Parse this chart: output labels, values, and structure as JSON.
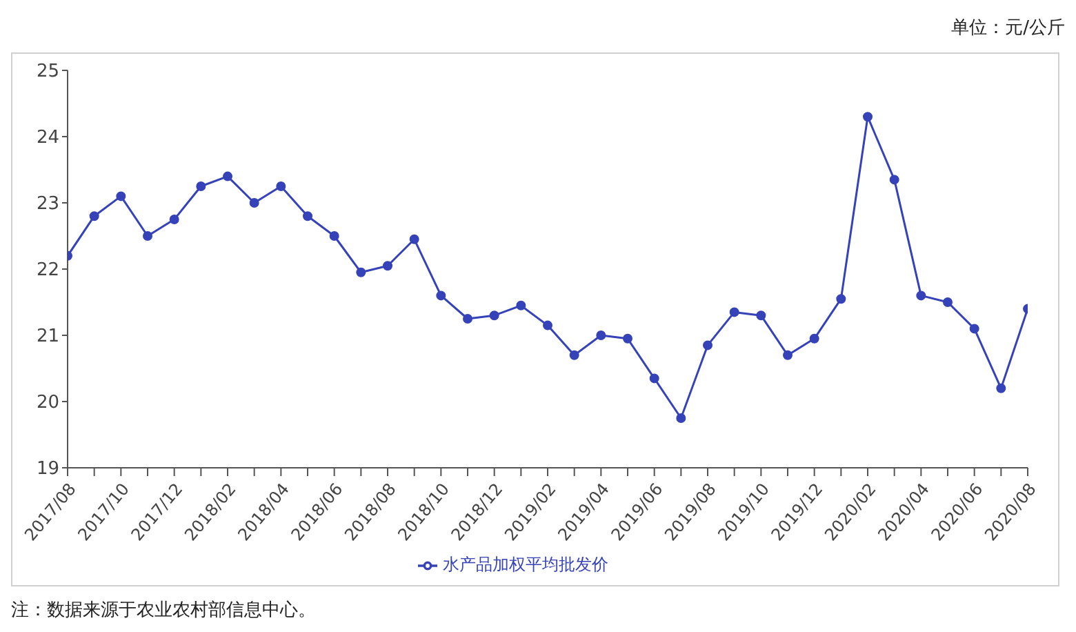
{
  "chart_data": {
    "type": "line",
    "categories": [
      "2017/08",
      null,
      "2017/10",
      null,
      "2017/12",
      null,
      "2018/02",
      null,
      "2018/04",
      null,
      "2018/06",
      null,
      "2018/08",
      null,
      "2018/10",
      null,
      "2018/12",
      null,
      "2019/02",
      null,
      "2019/04",
      null,
      "2019/06",
      null,
      "2019/08",
      null,
      "2019/10",
      null,
      "2019/12",
      null,
      "2020/02",
      null,
      "2020/04",
      null,
      "2020/06",
      null,
      "2020/08"
    ],
    "series": [
      {
        "name": "水产品加权平均批发价",
        "color": "#3542b8",
        "values": [
          22.2,
          22.8,
          23.1,
          22.5,
          22.75,
          23.25,
          23.4,
          23.0,
          23.25,
          22.8,
          22.5,
          21.95,
          22.05,
          22.45,
          21.6,
          21.25,
          21.3,
          21.45,
          21.15,
          20.7,
          21.0,
          20.95,
          20.35,
          19.75,
          20.85,
          21.35,
          21.3,
          20.7,
          20.95,
          21.55,
          24.3,
          23.35,
          21.6,
          21.5,
          21.1,
          20.2,
          21.4
        ]
      }
    ],
    "ylim": [
      19,
      25
    ],
    "yticks": [
      19,
      20,
      21,
      22,
      23,
      24,
      25
    ],
    "grid": false,
    "legend": "bottom",
    "marker": "circle",
    "line_style": "solid",
    "annotations": [
      "单位：元/公斤",
      "注：数据来源于农业农村部信息中心。"
    ]
  }
}
